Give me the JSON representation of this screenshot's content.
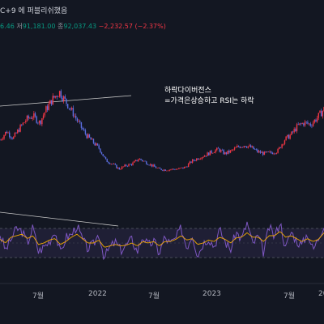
{
  "header": {
    "title_fragment": "C+9 에 퍼블리쉬했음",
    "ohlc_fragment": "6.46",
    "low_label": "저",
    "low_value": "91,181.00",
    "close_label": "종",
    "close_value": "92,037.43",
    "change": "−2,232.57 (−2.37%)"
  },
  "annotation": {
    "line1": "하락다이버전스",
    "line2": "=가격은상승하고 RSI는 하락"
  },
  "x_axis_labels": [
    "7월",
    "2022",
    "7월",
    "2023",
    "7월",
    "20"
  ],
  "colors": {
    "background": "#131722",
    "candle_up": "#f23645",
    "candle_down": "#5b6ee1",
    "rsi_line": "#7e57c2",
    "rsi_ma": "#f2a900",
    "rsi_band": "#7e57c2",
    "trendline": "#c8c8c8"
  },
  "chart_data": [
    {
      "type": "candlestick",
      "title": "",
      "series": [
        {
          "values": [
            34000,
            39000,
            35000,
            41000,
            46000,
            48000,
            44000,
            52000,
            58000,
            62000,
            56000,
            50000,
            43000,
            37000,
            33000,
            29000,
            22000,
            20000,
            17000,
            19000,
            20000,
            23000,
            21000,
            19000,
            17000,
            16500,
            16800,
            17000,
            18000,
            21500,
            23500,
            25000,
            27000,
            28500,
            26000,
            27500,
            30000,
            31000,
            29500,
            27000,
            26000,
            26500,
            27500,
            34000,
            37000,
            42000,
            44000,
            43000,
            47000,
            52000
          ]
        }
      ]
    },
    {
      "type": "line",
      "title": "RSI",
      "series": [
        {
          "values": [
            62,
            40,
            55,
            70,
            66,
            50,
            72,
            38,
            45,
            52,
            68,
            35,
            58,
            61,
            74,
            55,
            42,
            48,
            63,
            30,
            44,
            51,
            40,
            47,
            55,
            38,
            60,
            46,
            53,
            36,
            58,
            49,
            56,
            71,
            44,
            62,
            33,
            50,
            57,
            45,
            68,
            52,
            41,
            65,
            55,
            78,
            48,
            60,
            37,
            72,
            58,
            80,
            42,
            66,
            53,
            47,
            64,
            40,
            57,
            76
          ]
        },
        {
          "values": [
            55,
            50,
            58,
            60,
            62,
            56,
            60,
            48,
            50,
            54,
            56,
            48,
            52,
            58,
            62,
            56,
            50,
            50,
            54,
            44,
            46,
            48,
            46,
            47,
            50,
            46,
            52,
            50,
            52,
            46,
            52,
            52,
            55,
            60,
            54,
            56,
            48,
            50,
            54,
            52,
            58,
            55,
            50,
            57,
            58,
            64,
            58,
            58,
            52,
            60,
            60,
            66,
            58,
            60,
            56,
            52,
            56,
            52,
            55,
            64
          ]
        }
      ],
      "ylim": [
        0,
        100
      ]
    }
  ]
}
